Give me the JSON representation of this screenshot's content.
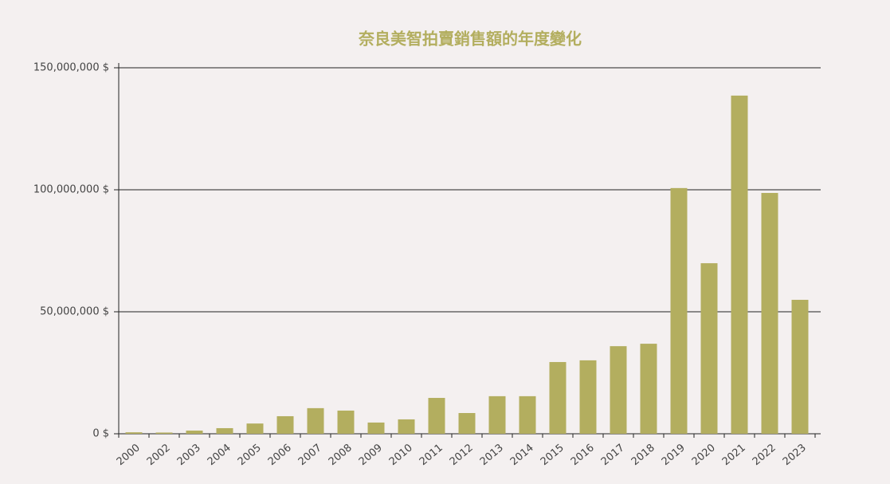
{
  "chart_data": {
    "type": "bar",
    "title": "奈良美智拍賣銷售額的年度變化",
    "categories": [
      "2000",
      "2002",
      "2003",
      "2004",
      "2005",
      "2006",
      "2007",
      "2008",
      "2009",
      "2010",
      "2011",
      "2012",
      "2013",
      "2014",
      "2015",
      "2016",
      "2017",
      "2018",
      "2019",
      "2020",
      "2021",
      "2022",
      "2023"
    ],
    "values": [
      600000,
      500000,
      1300000,
      2300000,
      4200000,
      7200000,
      10500000,
      9500000,
      4600000,
      5900000,
      14700000,
      8500000,
      15400000,
      15400000,
      29400000,
      30100000,
      35900000,
      36900000,
      100700000,
      69900000,
      138600000,
      98700000,
      54900000
    ],
    "color": "#b3ae5f",
    "ylim": [
      0,
      150000000
    ],
    "yticks": [
      {
        "value": 0,
        "label": "0 $"
      },
      {
        "value": 50000000,
        "label": "50,000,000 $"
      },
      {
        "value": 100000000,
        "label": "100,000,000 $"
      },
      {
        "value": 150000000,
        "label": "150,000,000 $"
      }
    ],
    "grid": true
  }
}
